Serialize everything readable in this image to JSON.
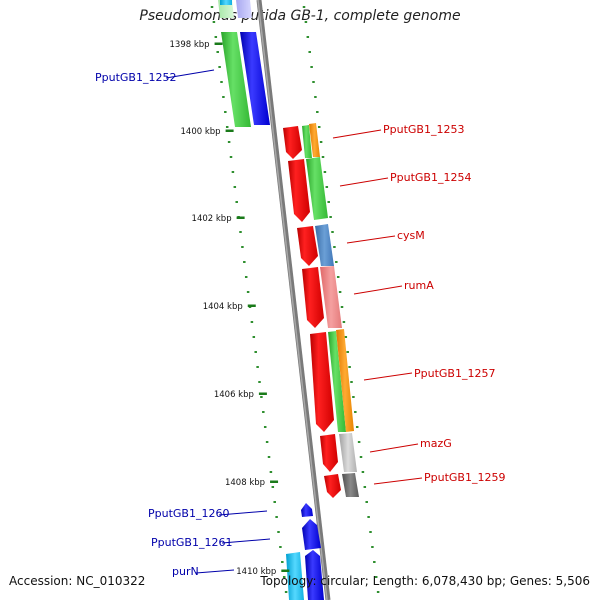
{
  "title": "Pseudomonas putida GB-1, complete genome",
  "footer": {
    "accession": "Accession: NC_010322",
    "stats": "Topology: circular; Length: 6,078,430 bp; Genes: 5,506"
  },
  "colors": {
    "backbone": "#888888",
    "tick": "#2f8f2f",
    "ruler": "#1a7a1a",
    "label_right": "#cc0000",
    "label_left": "#0000aa"
  },
  "ruler": [
    {
      "label": "1398 kbp"
    },
    {
      "label": "1400 kbp"
    },
    {
      "label": "1402 kbp"
    },
    {
      "label": "1404 kbp"
    },
    {
      "label": "1406 kbp"
    },
    {
      "label": "1408 kbp"
    },
    {
      "label": "1410 kbp"
    }
  ],
  "genes": [
    {
      "name": "PputGB1_1252",
      "side": "left",
      "lane": "left"
    },
    {
      "name": "PputGB1_1253",
      "side": "right",
      "lane": "right"
    },
    {
      "name": "PputGB1_1254",
      "side": "right",
      "lane": "right"
    },
    {
      "name": "cysM",
      "side": "right",
      "lane": "right"
    },
    {
      "name": "rumA",
      "side": "right",
      "lane": "right"
    },
    {
      "name": "PputGB1_1257",
      "side": "right",
      "lane": "right"
    },
    {
      "name": "mazG",
      "side": "right",
      "lane": "right"
    },
    {
      "name": "PputGB1_1259",
      "side": "right",
      "lane": "right"
    },
    {
      "name": "PputGB1_1260",
      "side": "left",
      "lane": "right"
    },
    {
      "name": "PputGB1_1261",
      "side": "left",
      "lane": "right"
    },
    {
      "name": "purN",
      "side": "left",
      "lane": "right"
    }
  ]
}
